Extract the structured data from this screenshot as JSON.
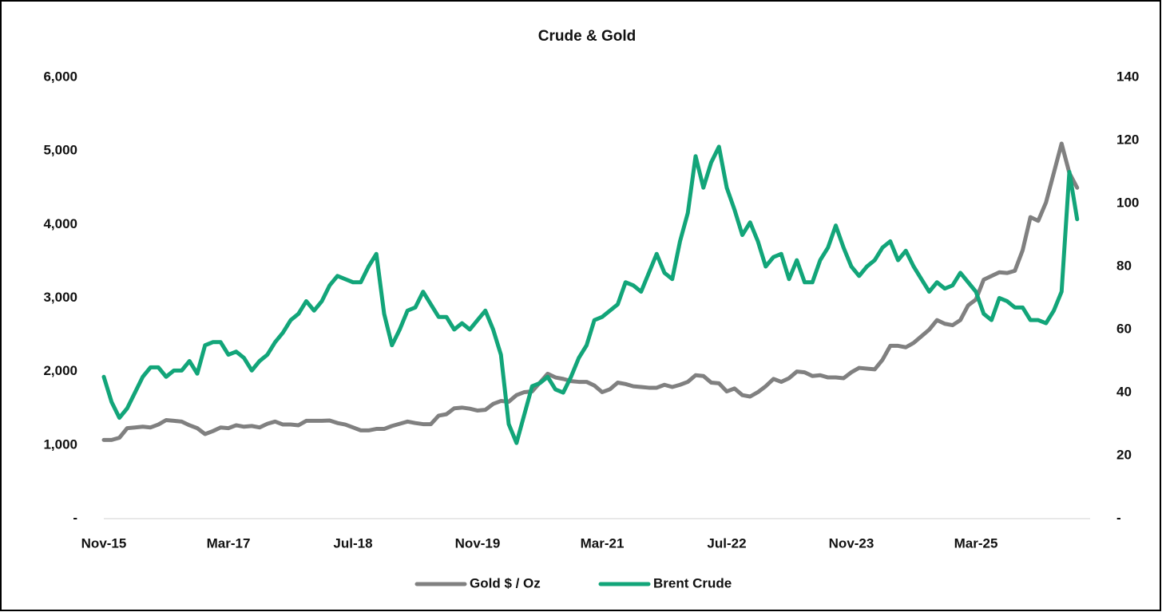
{
  "chart_data": {
    "type": "line",
    "title": "Crude & Gold",
    "categories": [
      "Nov-15",
      null,
      null,
      null,
      null,
      null,
      null,
      null,
      null,
      null,
      null,
      null,
      null,
      null,
      null,
      null,
      "Mar-17",
      null,
      null,
      null,
      null,
      null,
      null,
      null,
      null,
      null,
      null,
      null,
      null,
      null,
      null,
      null,
      "Jul-18",
      null,
      null,
      null,
      null,
      null,
      null,
      null,
      null,
      null,
      null,
      null,
      null,
      null,
      null,
      null,
      "Nov-19",
      null,
      null,
      null,
      null,
      null,
      null,
      null,
      null,
      null,
      null,
      null,
      null,
      null,
      null,
      null,
      "Mar-21",
      null,
      null,
      null,
      null,
      null,
      null,
      null,
      null,
      null,
      null,
      null,
      null,
      null,
      null,
      null,
      "Jul-22",
      null,
      null,
      null,
      null,
      null,
      null,
      null,
      null,
      null,
      null,
      null,
      null,
      null,
      null,
      null,
      "Nov-23",
      null,
      null,
      null,
      null,
      null,
      null,
      null,
      null,
      null,
      null,
      null,
      null,
      null,
      null,
      null,
      "Mar-25",
      null,
      null,
      null,
      null,
      null,
      null,
      null,
      null,
      null,
      null,
      null,
      null,
      null
    ],
    "series": [
      {
        "name": "Gold $ / Oz",
        "color": "#808080",
        "axis": "y",
        "values": [
          1070,
          1070,
          1100,
          1230,
          1240,
          1250,
          1240,
          1280,
          1340,
          1330,
          1320,
          1270,
          1230,
          1150,
          1190,
          1240,
          1230,
          1270,
          1250,
          1260,
          1240,
          1290,
          1320,
          1280,
          1280,
          1270,
          1330,
          1330,
          1330,
          1335,
          1300,
          1280,
          1240,
          1200,
          1200,
          1220,
          1220,
          1260,
          1290,
          1320,
          1300,
          1285,
          1285,
          1400,
          1420,
          1500,
          1510,
          1495,
          1470,
          1480,
          1560,
          1600,
          1590,
          1680,
          1720,
          1730,
          1850,
          1970,
          1920,
          1900,
          1870,
          1860,
          1860,
          1810,
          1720,
          1760,
          1850,
          1830,
          1800,
          1790,
          1780,
          1780,
          1820,
          1790,
          1820,
          1860,
          1950,
          1940,
          1850,
          1840,
          1730,
          1770,
          1680,
          1660,
          1720,
          1800,
          1900,
          1860,
          1910,
          2000,
          1990,
          1940,
          1950,
          1920,
          1920,
          1910,
          1990,
          2050,
          2040,
          2030,
          2160,
          2350,
          2350,
          2330,
          2390,
          2480,
          2570,
          2700,
          2650,
          2630,
          2700,
          2900,
          2980,
          3250,
          3300,
          3350,
          3340,
          3370,
          3650,
          4100,
          4050,
          4300,
          4700,
          5100,
          4700,
          4500
        ]
      },
      {
        "name": "Brent Crude",
        "color": "#12a579",
        "axis": "y2",
        "values": [
          45,
          37,
          32,
          35,
          40,
          45,
          48,
          48,
          45,
          47,
          47,
          50,
          46,
          55,
          56,
          56,
          52,
          53,
          51,
          47,
          50,
          52,
          56,
          59,
          63,
          65,
          69,
          66,
          69,
          74,
          77,
          76,
          75,
          75,
          80,
          84,
          65,
          55,
          60,
          66,
          67,
          72,
          68,
          64,
          64,
          60,
          62,
          60,
          63,
          66,
          60,
          52,
          30,
          24,
          33,
          42,
          43,
          45,
          41,
          40,
          45,
          51,
          55,
          63,
          64,
          66,
          68,
          75,
          74,
          72,
          78,
          84,
          78,
          76,
          88,
          97,
          115,
          105,
          113,
          118,
          105,
          98,
          90,
          94,
          88,
          80,
          83,
          84,
          76,
          82,
          75,
          75,
          82,
          86,
          93,
          86,
          80,
          77,
          80,
          82,
          86,
          88,
          82,
          85,
          80,
          76,
          72,
          75,
          73,
          74,
          78,
          75,
          72,
          65,
          63,
          70,
          69,
          67,
          67,
          63,
          63,
          62,
          66,
          72,
          110,
          95
        ]
      }
    ],
    "ylim": [
      0,
      6000
    ],
    "yticks": [
      {
        "value": 0,
        "label": "-"
      },
      {
        "value": 1000,
        "label": "1,000"
      },
      {
        "value": 2000,
        "label": "2,000"
      },
      {
        "value": 3000,
        "label": "3,000"
      },
      {
        "value": 4000,
        "label": "4,000"
      },
      {
        "value": 5000,
        "label": "5,000"
      },
      {
        "value": 6000,
        "label": "6,000"
      }
    ],
    "y2lim": [
      0,
      140
    ],
    "y2ticks": [
      {
        "value": 0,
        "label": "-"
      },
      20,
      40,
      60,
      80,
      100,
      120,
      140
    ],
    "grid": false,
    "legend": "bottom"
  }
}
